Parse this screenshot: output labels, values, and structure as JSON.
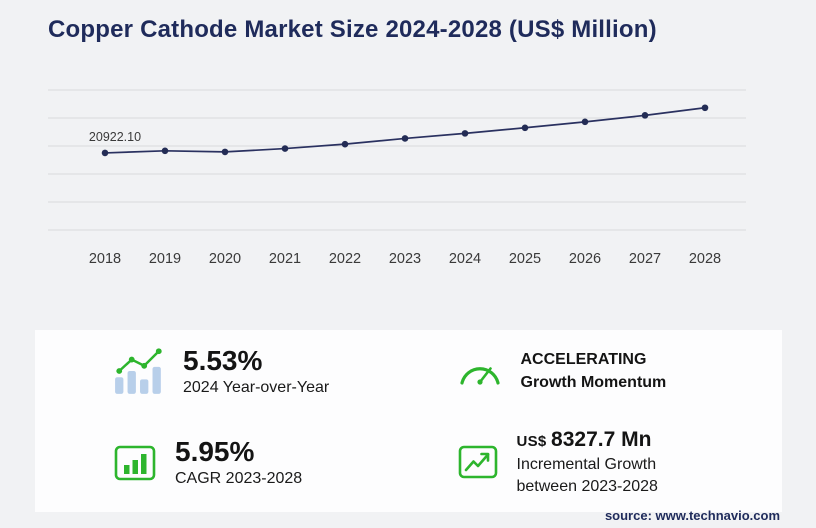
{
  "header": {
    "title": "Copper Cathode Market Size 2024-2028 (US$ Million)"
  },
  "chart_data": {
    "type": "line",
    "title": "Copper Cathode Market Size 2024-2028 (US$ Million)",
    "x": [
      2018,
      2019,
      2020,
      2021,
      2022,
      2023,
      2024,
      2025,
      2026,
      2027,
      2028
    ],
    "values": [
      20922.1,
      21500,
      21200,
      22100,
      23300,
      24851,
      26225,
      27746,
      29355,
      31116,
      33178.7
    ],
    "first_point_label": "20922.10",
    "ylim": [
      0,
      38000
    ],
    "grid": true,
    "gridline_count": 6,
    "legend": "none",
    "line_color": "#2a3160",
    "point_color": "#232c55",
    "gridline_color": "#d9dadc",
    "tick_color": "#3a3a3a"
  },
  "stats": {
    "yoy": {
      "value": "5.53%",
      "label": "2024 Year-over-Year",
      "icon": "bar-chart-trend-icon"
    },
    "momentum": {
      "line1": "ACCELERATING",
      "line2": "Growth Momentum",
      "icon": "speedometer-icon"
    },
    "cagr": {
      "value": "5.95%",
      "label": "CAGR 2023-2028",
      "icon": "boxed-bar-chart-icon"
    },
    "incremental": {
      "currency": "US$",
      "value": "8327.7 Mn",
      "label_line1": "Incremental Growth",
      "label_line2": "between 2023-2028",
      "icon": "boxed-growth-arrow-icon"
    }
  },
  "footer": {
    "source": "source: www.technavio.com"
  },
  "colors": {
    "accent_green": "#2db52d",
    "brand_navy": "#1f2b5b",
    "bar_light_blue": "#b8cfea"
  }
}
